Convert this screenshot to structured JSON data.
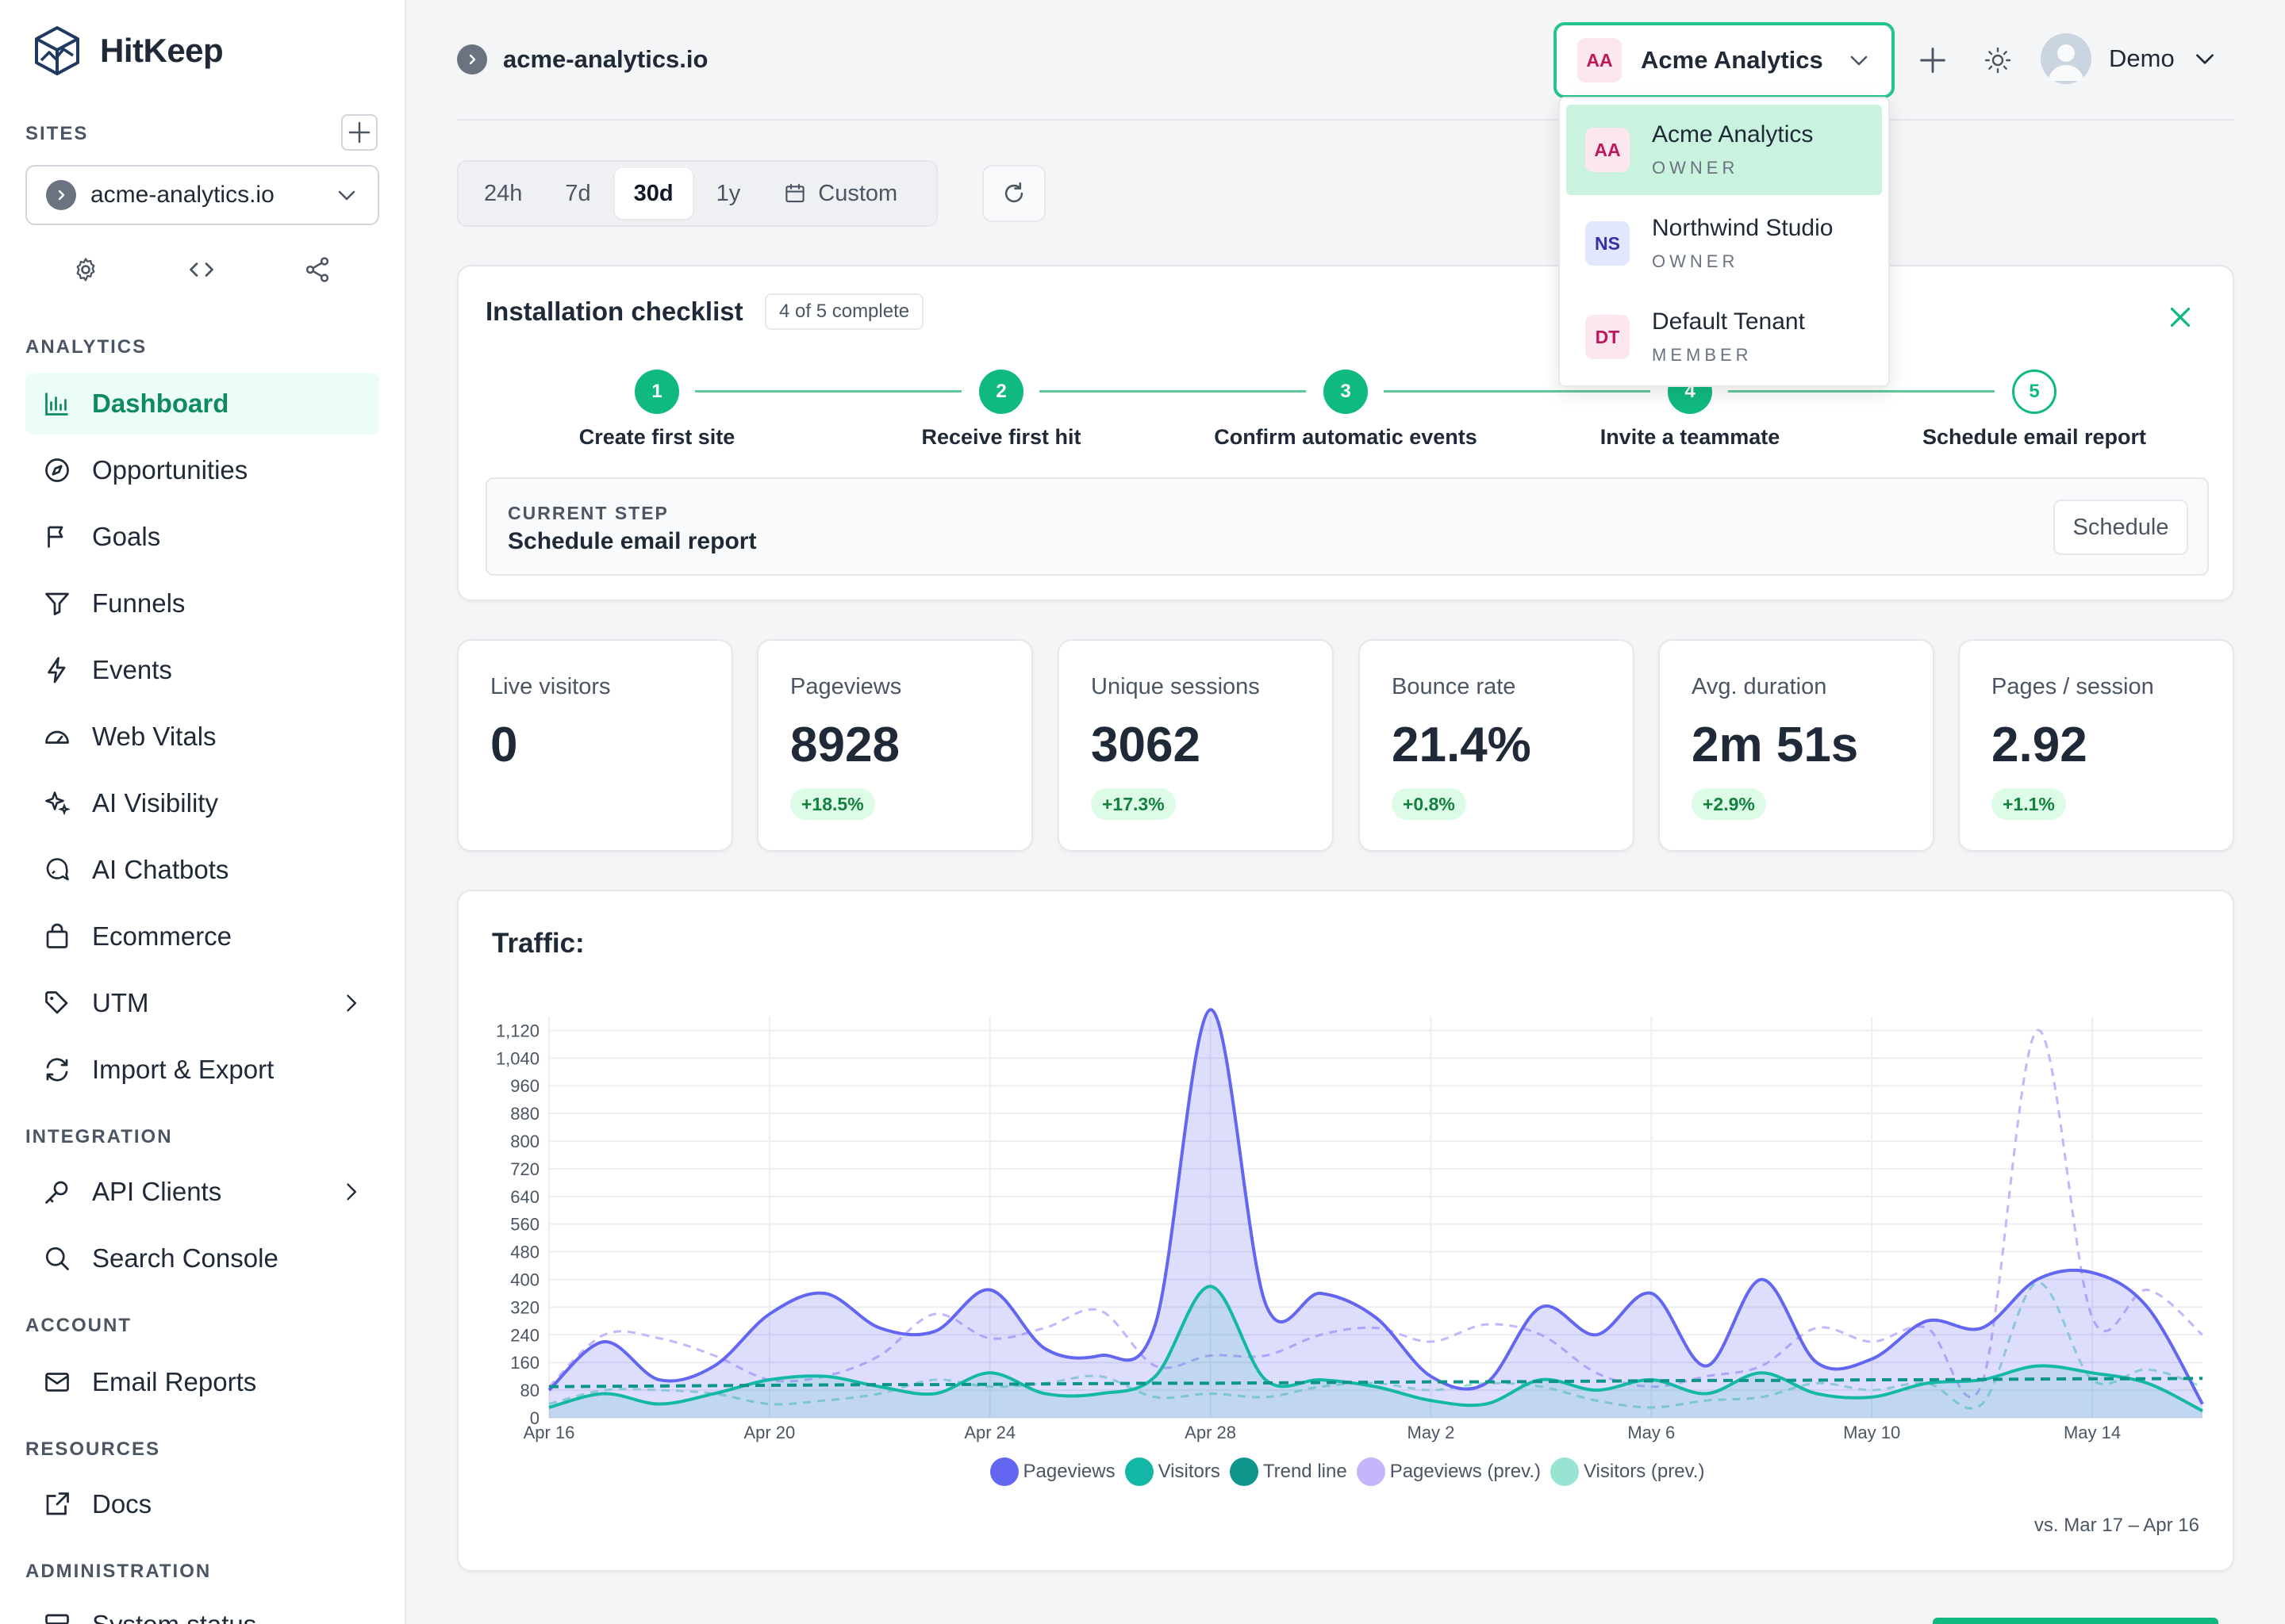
{
  "brand": {
    "name": "HitKeep"
  },
  "sidebar": {
    "sites_label": "SITES",
    "current_site": "acme-analytics.io",
    "analytics_label": "ANALYTICS",
    "analytics_items": [
      {
        "label": "Dashboard",
        "icon": "bar-chart-icon",
        "active": true
      },
      {
        "label": "Opportunities",
        "icon": "compass-icon"
      },
      {
        "label": "Goals",
        "icon": "flag-icon"
      },
      {
        "label": "Funnels",
        "icon": "funnel-icon"
      },
      {
        "label": "Events",
        "icon": "bolt-icon"
      },
      {
        "label": "Web Vitals",
        "icon": "gauge-icon"
      },
      {
        "label": "AI Visibility",
        "icon": "sparkle-icon"
      },
      {
        "label": "AI Chatbots",
        "icon": "chat-search-icon"
      },
      {
        "label": "Ecommerce",
        "icon": "bag-icon"
      },
      {
        "label": "UTM",
        "icon": "tag-icon",
        "expandable": true
      },
      {
        "label": "Import & Export",
        "icon": "sync-icon"
      }
    ],
    "integration_label": "INTEGRATION",
    "integration_items": [
      {
        "label": "API Clients",
        "icon": "key-icon",
        "expandable": true
      },
      {
        "label": "Search Console",
        "icon": "search-icon"
      }
    ],
    "account_label": "ACCOUNT",
    "account_items": [
      {
        "label": "Email Reports",
        "icon": "mail-icon"
      }
    ],
    "resources_label": "RESOURCES",
    "resources_items": [
      {
        "label": "Docs",
        "icon": "external-link-icon"
      }
    ],
    "administration_label": "ADMINISTRATION",
    "administration_items": [
      {
        "label": "System status",
        "icon": "server-icon"
      }
    ]
  },
  "header": {
    "breadcrumb_site": "acme-analytics.io",
    "tenant": {
      "initials": "AA",
      "name": "Acme Analytics"
    },
    "user": {
      "name": "Demo"
    }
  },
  "tenant_menu": [
    {
      "initials": "AA",
      "name": "Acme Analytics",
      "role": "OWNER",
      "selected": true
    },
    {
      "initials": "NS",
      "name": "Northwind Studio",
      "role": "OWNER"
    },
    {
      "initials": "DT",
      "name": "Default Tenant",
      "role": "MEMBER"
    }
  ],
  "range": {
    "options": [
      "24h",
      "7d",
      "30d",
      "1y"
    ],
    "active": "30d",
    "custom_label": "Custom"
  },
  "checklist": {
    "title": "Installation checklist",
    "badge": "4 of 5 complete",
    "steps": [
      {
        "num": "1",
        "label": "Create first site",
        "done": true
      },
      {
        "num": "2",
        "label": "Receive first hit",
        "done": true
      },
      {
        "num": "3",
        "label": "Confirm automatic events",
        "done": true
      },
      {
        "num": "4",
        "label": "Invite a teammate",
        "done": true
      },
      {
        "num": "5",
        "label": "Schedule email report",
        "done": false
      }
    ],
    "current_label": "CURRENT STEP",
    "current_value": "Schedule email report",
    "action_label": "Schedule"
  },
  "stats": [
    {
      "label": "Live visitors",
      "value": "0",
      "delta": ""
    },
    {
      "label": "Pageviews",
      "value": "8928",
      "delta": "+18.5%"
    },
    {
      "label": "Unique sessions",
      "value": "3062",
      "delta": "+17.3%"
    },
    {
      "label": "Bounce rate",
      "value": "21.4%",
      "delta": "+0.8%"
    },
    {
      "label": "Avg. duration",
      "value": "2m 51s",
      "delta": "+2.9%"
    },
    {
      "label": "Pages / session",
      "value": "2.92",
      "delta": "+1.1%"
    }
  ],
  "traffic": {
    "title": "Traffic:",
    "compare_note": "vs. Mar 17 – Apr 16"
  },
  "colors": {
    "accent": "#10b981",
    "pageviews": "#6366f1",
    "visitors": "#14b8a6",
    "trend": "#0e9488",
    "pageviews_prev": "#c4b5fd",
    "visitors_prev": "#99e3d3"
  },
  "chart_data": {
    "type": "area",
    "title": "Traffic:",
    "x": [
      "Apr 16",
      "Apr 17",
      "Apr 18",
      "Apr 19",
      "Apr 20",
      "Apr 21",
      "Apr 22",
      "Apr 23",
      "Apr 24",
      "Apr 25",
      "Apr 26",
      "Apr 27",
      "Apr 28",
      "Apr 29",
      "Apr 30",
      "May 1",
      "May 2",
      "May 3",
      "May 4",
      "May 5",
      "May 6",
      "May 7",
      "May 8",
      "May 9",
      "May 10",
      "May 11",
      "May 12",
      "May 13",
      "May 14",
      "May 15",
      "May 16"
    ],
    "x_tick_labels": [
      "Apr 16",
      "Apr 20",
      "Apr 24",
      "Apr 28",
      "May 2",
      "May 6",
      "May 10",
      "May 14"
    ],
    "ylim": [
      0,
      1160
    ],
    "y_ticks": [
      0,
      80,
      160,
      240,
      320,
      400,
      480,
      560,
      640,
      720,
      800,
      880,
      960,
      1040,
      1120
    ],
    "y_tick_labels": [
      "0",
      "80",
      "160",
      "240",
      "320",
      "400",
      "480",
      "560",
      "640",
      "720",
      "800",
      "880",
      "960",
      "1,040",
      "1,120"
    ],
    "series": [
      {
        "name": "Pageviews",
        "values": [
          80,
          220,
          110,
          150,
          300,
          360,
          260,
          250,
          370,
          200,
          180,
          270,
          1180,
          330,
          360,
          290,
          120,
          100,
          320,
          240,
          360,
          150,
          400,
          160,
          170,
          280,
          260,
          400,
          420,
          320,
          40
        ]
      },
      {
        "name": "Visitors",
        "values": [
          30,
          70,
          40,
          70,
          110,
          120,
          90,
          70,
          130,
          70,
          70,
          120,
          380,
          110,
          110,
          90,
          50,
          40,
          110,
          80,
          110,
          70,
          130,
          70,
          60,
          100,
          110,
          150,
          130,
          100,
          20
        ]
      },
      {
        "name": "Trend line",
        "values": [
          90,
          91,
          92,
          93,
          94,
          95,
          96,
          96,
          97,
          98,
          99,
          100,
          100,
          101,
          102,
          103,
          104,
          104,
          105,
          106,
          107,
          108,
          108,
          109,
          110,
          110,
          111,
          112,
          113,
          113,
          114
        ]
      },
      {
        "name": "Pageviews (prev.)",
        "values": [
          90,
          240,
          230,
          180,
          110,
          120,
          180,
          300,
          230,
          260,
          310,
          150,
          180,
          180,
          240,
          260,
          220,
          270,
          240,
          130,
          90,
          120,
          150,
          260,
          220,
          260,
          100,
          1120,
          290,
          370,
          240
        ]
      },
      {
        "name": "Visitors (prev.)",
        "values": [
          40,
          80,
          80,
          70,
          40,
          50,
          70,
          110,
          90,
          100,
          120,
          60,
          70,
          60,
          90,
          100,
          80,
          100,
          90,
          50,
          30,
          50,
          60,
          100,
          80,
          100,
          40,
          390,
          110,
          140,
          90
        ]
      }
    ]
  }
}
